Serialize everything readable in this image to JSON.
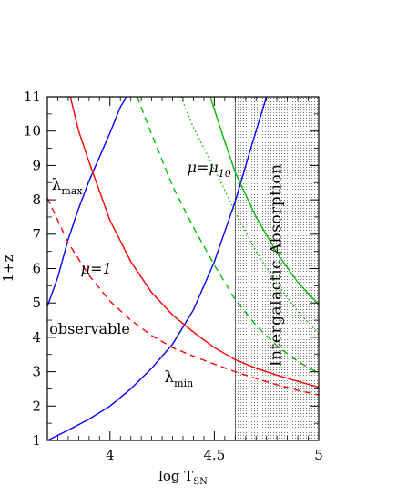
{
  "chart_data": {
    "type": "line",
    "xlabel": "log T",
    "xlabel_sub": "SN",
    "ylabel": "1+z",
    "xlim": [
      3.7,
      5.0
    ],
    "ylim": [
      1,
      11
    ],
    "xticks": [
      4,
      4.5,
      5
    ],
    "xtick_labels": [
      "4",
      "4.5",
      "5"
    ],
    "yticks": [
      1,
      2,
      3,
      4,
      5,
      6,
      7,
      8,
      9,
      10,
      11
    ],
    "ytick_labels": [
      "1",
      "2",
      "3",
      "4",
      "5",
      "6",
      "7",
      "8",
      "9",
      "10",
      "11"
    ],
    "shaded_region": {
      "x_from": 4.6,
      "x_to": 5.0,
      "label": "Intergalactic Absorption",
      "pattern": "dots"
    },
    "series": [
      {
        "id": "lambda-max-blue",
        "color": "#0000ff",
        "style": "solid",
        "points": [
          [
            3.7,
            4.9
          ],
          [
            3.75,
            5.75
          ],
          [
            3.8,
            6.85
          ],
          [
            3.85,
            7.75
          ],
          [
            3.9,
            8.55
          ],
          [
            3.95,
            9.25
          ],
          [
            4.0,
            9.95
          ],
          [
            4.05,
            10.7
          ],
          [
            4.08,
            11.0
          ]
        ]
      },
      {
        "id": "lambda-min-blue",
        "color": "#0000ff",
        "style": "solid",
        "points": [
          [
            3.7,
            1.0
          ],
          [
            3.8,
            1.3
          ],
          [
            3.9,
            1.62
          ],
          [
            4.0,
            2.0
          ],
          [
            4.1,
            2.5
          ],
          [
            4.2,
            3.1
          ],
          [
            4.3,
            3.8
          ],
          [
            4.4,
            4.8
          ],
          [
            4.5,
            6.2
          ],
          [
            4.6,
            7.95
          ],
          [
            4.68,
            9.6
          ],
          [
            4.75,
            11.0
          ]
        ]
      },
      {
        "id": "lambda-red",
        "color": "#ff0000",
        "style": "solid",
        "points": [
          [
            3.81,
            11.0
          ],
          [
            3.85,
            10.0
          ],
          [
            3.9,
            9.1
          ],
          [
            4.0,
            7.4
          ],
          [
            4.1,
            6.2
          ],
          [
            4.2,
            5.3
          ],
          [
            4.3,
            4.65
          ],
          [
            4.4,
            4.15
          ],
          [
            4.5,
            3.7
          ],
          [
            4.6,
            3.35
          ],
          [
            4.7,
            3.1
          ],
          [
            4.8,
            2.9
          ],
          [
            4.9,
            2.72
          ],
          [
            5.0,
            2.55
          ]
        ]
      },
      {
        "id": "mu-1-red",
        "color": "#ff0000",
        "style": "dashed",
        "points": [
          [
            3.7,
            8.05
          ],
          [
            3.75,
            7.4
          ],
          [
            3.8,
            6.75
          ],
          [
            3.9,
            5.8
          ],
          [
            4.0,
            5.05
          ],
          [
            4.1,
            4.5
          ],
          [
            4.2,
            4.05
          ],
          [
            4.3,
            3.7
          ],
          [
            4.4,
            3.45
          ],
          [
            4.5,
            3.22
          ],
          [
            4.6,
            3.0
          ],
          [
            4.7,
            2.8
          ],
          [
            4.8,
            2.62
          ],
          [
            4.9,
            2.46
          ],
          [
            5.0,
            2.32
          ]
        ]
      },
      {
        "id": "green-dashed",
        "color": "#00bb00",
        "style": "dashed",
        "points": [
          [
            4.13,
            11.0
          ],
          [
            4.2,
            9.9
          ],
          [
            4.3,
            8.4
          ],
          [
            4.4,
            7.2
          ],
          [
            4.5,
            6.1
          ],
          [
            4.6,
            5.1
          ],
          [
            4.7,
            4.35
          ],
          [
            4.8,
            3.75
          ],
          [
            4.9,
            3.3
          ],
          [
            5.0,
            2.95
          ]
        ]
      },
      {
        "id": "green-dotted",
        "color": "#00bb00",
        "style": "dotted",
        "points": [
          [
            4.34,
            11.0
          ],
          [
            4.4,
            10.1
          ],
          [
            4.5,
            8.9
          ],
          [
            4.6,
            7.65
          ],
          [
            4.7,
            6.5
          ],
          [
            4.8,
            5.55
          ],
          [
            4.9,
            4.75
          ],
          [
            5.0,
            4.1
          ]
        ]
      },
      {
        "id": "mu-10-green",
        "color": "#00bb00",
        "style": "solid",
        "points": [
          [
            4.48,
            11.0
          ],
          [
            4.55,
            9.7
          ],
          [
            4.6,
            8.8
          ],
          [
            4.7,
            7.5
          ],
          [
            4.8,
            6.45
          ],
          [
            4.9,
            5.6
          ],
          [
            5.0,
            4.95
          ]
        ]
      }
    ],
    "annotations": {
      "lambda_max": {
        "text": "λ",
        "sub": "max"
      },
      "lambda_min": {
        "text": "λ",
        "sub": "min"
      },
      "mu_1": "μ=1",
      "mu_10": {
        "text": "μ=μ",
        "sub": "10"
      },
      "observable": "observable"
    }
  }
}
